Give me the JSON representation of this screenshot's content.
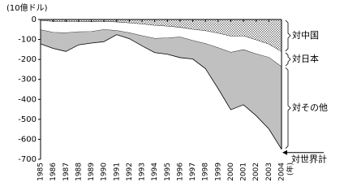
{
  "chart_data": {
    "type": "stacked-area",
    "y_label": "(10億ドル)",
    "x_label": "(年)",
    "categories": [
      "1985",
      "1986",
      "1987",
      "1988",
      "1989",
      "1990",
      "1991",
      "1992",
      "1993",
      "1994",
      "1995",
      "1996",
      "1997",
      "1998",
      "1999",
      "2000",
      "2001",
      "2002",
      "2003",
      "2004"
    ],
    "series": [
      {
        "name": "対中国",
        "color": "#ffffff",
        "pattern": "crosshatch",
        "values": [
          -6,
          -10,
          -10,
          -10,
          -12,
          -10,
          -13,
          -18,
          -23,
          -30,
          -34,
          -40,
          -50,
          -57,
          -69,
          -84,
          -83,
          -103,
          -124,
          -162
        ]
      },
      {
        "name": "対日本",
        "color": "#ffffff",
        "values": [
          -46,
          -55,
          -57,
          -52,
          -49,
          -41,
          -43,
          -49,
          -59,
          -65,
          -59,
          -48,
          -56,
          -64,
          -73,
          -81,
          -69,
          -70,
          -66,
          -75
        ]
      },
      {
        "name": "対その他",
        "color": "#c0c0c0",
        "values": [
          -70,
          -80,
          -93,
          -65,
          -57,
          -60,
          -20,
          -29,
          -50,
          -71,
          -81,
          -103,
          -92,
          -125,
          -204,
          -287,
          -275,
          -309,
          -358,
          -413
        ]
      }
    ],
    "total_label": "対世界計",
    "ylim": [
      -700,
      0
    ],
    "yticks": [
      0,
      -100,
      -200,
      -300,
      -400,
      -500,
      -600,
      -700
    ]
  }
}
